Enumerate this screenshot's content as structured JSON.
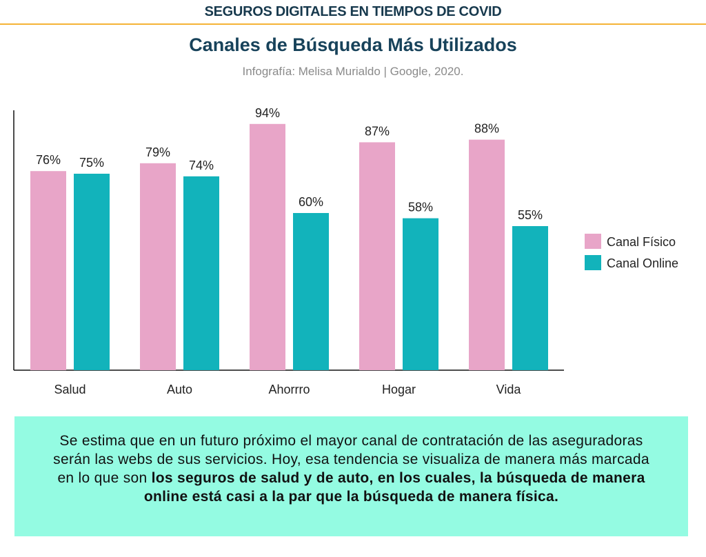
{
  "header": {
    "banner": "SEGUROS DIGITALES EN TIEMPOS DE COVID"
  },
  "chart_data": {
    "type": "bar",
    "title": "Canales de Búsqueda Más Utilizados",
    "subtitle": "Infografía: Melisa Murialdo | Google, 2020.",
    "categories": [
      "Salud",
      "Auto",
      "Ahorrro",
      "Hogar",
      "Vida"
    ],
    "series": [
      {
        "name": "Canal Físico",
        "values": [
          76,
          79,
          94,
          87,
          88
        ],
        "color": "#e8a5c8"
      },
      {
        "name": "Canal Online",
        "values": [
          75,
          74,
          60,
          58,
          55
        ],
        "color": "#12b3bb"
      }
    ],
    "value_suffix": "%",
    "ylim": [
      0,
      100
    ],
    "grid": false,
    "legend": "right"
  },
  "note": {
    "normal": "Se estima que en un futuro próximo el mayor canal de contratación de las aseguradoras serán las webs de sus servicios. Hoy, esa tendencia se visualiza de manera más marcada en lo que son ",
    "bold": "los seguros de salud y de auto, en los cuales, la búsqueda de manera online está casi a la par que la búsqueda de manera física."
  }
}
